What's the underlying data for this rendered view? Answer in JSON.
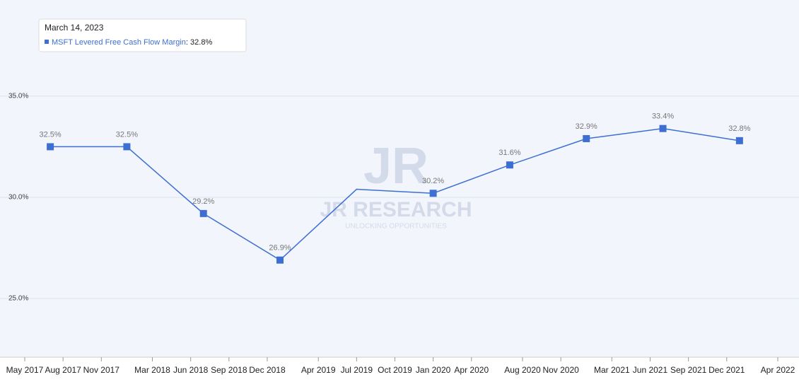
{
  "chart_data": {
    "type": "line",
    "tooltip": {
      "date": "March 14, 2023"
    },
    "watermark": {
      "logo": "JR",
      "title": "JR RESEARCH",
      "subtitle": "UNLOCKING OPPORTUNITIES"
    },
    "x": [
      "Jun 2017",
      "Dec 2017",
      "Jun 2018",
      "Dec 2018",
      "Jun 2019",
      "Dec 2019",
      "Jun 2020",
      "Dec 2020",
      "Jun 2021",
      "Dec 2021"
    ],
    "series": [
      {
        "name": "MSFT Levered Free Cash Flow Margin",
        "color": "#3d6fd3",
        "values": [
          32.5,
          32.5,
          29.2,
          26.9,
          30.4,
          30.2,
          31.6,
          32.9,
          33.4,
          32.8
        ],
        "value_labels": [
          "32.5%",
          "32.5%",
          "29.2%",
          "26.9%",
          null,
          "30.2%",
          "31.6%",
          "32.9%",
          "33.4%",
          "32.8%"
        ]
      }
    ],
    "xlim": [
      "May 2017",
      "Apr 2022"
    ],
    "xticks": [
      "May 2017",
      "Aug 2017",
      "Nov 2017",
      "Mar 2018",
      "Jun 2018",
      "Sep 2018",
      "Dec 2018",
      "Apr 2019",
      "Jul 2019",
      "Oct 2019",
      "Jan 2020",
      "Apr 2020",
      "Aug 2020",
      "Nov 2020",
      "Mar 2021",
      "Jun 2021",
      "Sep 2021",
      "Dec 2021",
      "Apr 2022"
    ],
    "ylim": [
      22.1,
      39.4
    ],
    "yticks": [
      {
        "value": 25,
        "label": "25.0%"
      },
      {
        "value": 30,
        "label": "30.0%"
      },
      {
        "value": 35,
        "label": "35.0%"
      }
    ],
    "grid": true
  }
}
